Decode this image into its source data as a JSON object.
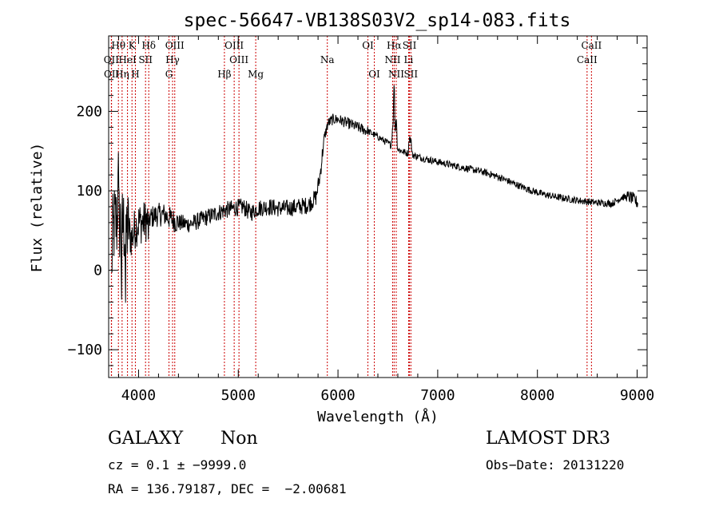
{
  "chart_data": {
    "type": "line",
    "title": "spec-56647-VB138S03V2_sp14-083.fits",
    "xlabel": "Wavelength (Å)",
    "ylabel": "Flux (relative)",
    "xlim": [
      3700,
      9100
    ],
    "ylim": [
      -135,
      295
    ],
    "xticks": [
      4000,
      5000,
      6000,
      7000,
      8000,
      9000
    ],
    "xtick_labels": [
      "4000",
      "5000",
      "6000",
      "7000",
      "8000",
      "9000"
    ],
    "yticks": [
      -100,
      0,
      100,
      200
    ],
    "ytick_labels": [
      "−100",
      "0",
      "100",
      "200"
    ],
    "line_color": "#000000",
    "marker_color": "#cc0000",
    "spectrum_anchors": [
      [
        3730,
        30
      ],
      [
        3760,
        60
      ],
      [
        3800,
        60
      ],
      [
        3860,
        55
      ],
      [
        3900,
        50
      ],
      [
        3930,
        40
      ],
      [
        3970,
        55
      ],
      [
        4000,
        60
      ],
      [
        4050,
        60
      ],
      [
        4100,
        65
      ],
      [
        4150,
        68
      ],
      [
        4200,
        70
      ],
      [
        4260,
        70
      ],
      [
        4320,
        65
      ],
      [
        4400,
        60
      ],
      [
        4500,
        58
      ],
      [
        4560,
        60
      ],
      [
        4650,
        65
      ],
      [
        4750,
        70
      ],
      [
        4850,
        75
      ],
      [
        4950,
        78
      ],
      [
        5050,
        80
      ],
      [
        5120,
        72
      ],
      [
        5200,
        78
      ],
      [
        5300,
        80
      ],
      [
        5400,
        78
      ],
      [
        5500,
        78
      ],
      [
        5600,
        80
      ],
      [
        5700,
        82
      ],
      [
        5780,
        92
      ],
      [
        5820,
        120
      ],
      [
        5860,
        165
      ],
      [
        5900,
        185
      ],
      [
        5950,
        190
      ],
      [
        6000,
        190
      ],
      [
        6100,
        185
      ],
      [
        6200,
        180
      ],
      [
        6300,
        175
      ],
      [
        6400,
        168
      ],
      [
        6500,
        160
      ],
      [
        6600,
        152
      ],
      [
        6700,
        147
      ],
      [
        6800,
        143
      ],
      [
        6880,
        140
      ],
      [
        6950,
        138
      ],
      [
        7050,
        135
      ],
      [
        7150,
        132
      ],
      [
        7300,
        128
      ],
      [
        7450,
        124
      ],
      [
        7600,
        118
      ],
      [
        7750,
        110
      ],
      [
        7900,
        102
      ],
      [
        8050,
        96
      ],
      [
        8200,
        92
      ],
      [
        8400,
        88
      ],
      [
        8600,
        85
      ],
      [
        8750,
        84
      ],
      [
        8850,
        92
      ],
      [
        8930,
        92
      ],
      [
        8980,
        88
      ],
      [
        9000,
        85
      ]
    ],
    "spectrum_features": [
      {
        "x": 6563,
        "height": 80,
        "width": 8
      },
      {
        "x": 6584,
        "height": 40,
        "width": 8
      },
      {
        "x": 6548,
        "height": 22,
        "width": 8
      },
      {
        "x": 6717,
        "height": 22,
        "width": 8
      },
      {
        "x": 6731,
        "height": 18,
        "width": 8
      },
      {
        "x": 3727,
        "height": -60,
        "width": 6
      },
      {
        "x": 3830,
        "height": -80,
        "width": 4
      },
      {
        "x": 3870,
        "height": -95,
        "width": 4
      },
      {
        "x": 3795,
        "height": 100,
        "width": 4
      },
      {
        "x": 4100,
        "height": -15,
        "width": 8
      }
    ],
    "lines": [
      {
        "name": "OII",
        "x": 3727,
        "row": 1
      },
      {
        "name": "OII",
        "x": 3729,
        "row": 2
      },
      {
        "name": "Hθ",
        "x": 3798,
        "row": 0
      },
      {
        "name": "Hη",
        "x": 3835,
        "row": 2
      },
      {
        "name": "HeI",
        "x": 3889,
        "row": 1
      },
      {
        "name": "K",
        "x": 3934,
        "row": 0
      },
      {
        "name": "H",
        "x": 3968,
        "row": 2
      },
      {
        "name": "SII",
        "x": 4070,
        "row": 1
      },
      {
        "name": "Hδ",
        "x": 4102,
        "row": 0
      },
      {
        "name": "OIII",
        "x": 4363,
        "row": 0
      },
      {
        "name": "Hγ",
        "x": 4341,
        "row": 1
      },
      {
        "name": "G",
        "x": 4305,
        "row": 2
      },
      {
        "name": "Hβ",
        "x": 4861,
        "row": 2
      },
      {
        "name": "OIII",
        "x": 4959,
        "row": 0
      },
      {
        "name": "OIII",
        "x": 5007,
        "row": 1
      },
      {
        "name": "Mg",
        "x": 5175,
        "row": 2
      },
      {
        "name": "Na",
        "x": 5893,
        "row": 1
      },
      {
        "name": "OI",
        "x": 6300,
        "row": 0
      },
      {
        "name": "OI",
        "x": 6364,
        "row": 2
      },
      {
        "name": "Hα",
        "x": 6563,
        "row": 0
      },
      {
        "name": "NII",
        "x": 6548,
        "row": 1
      },
      {
        "name": "NII",
        "x": 6584,
        "row": 2
      },
      {
        "name": "SII",
        "x": 6717,
        "row": 0
      },
      {
        "name": "Li",
        "x": 6708,
        "row": 1
      },
      {
        "name": "SII",
        "x": 6731,
        "row": 2
      },
      {
        "name": "CaII",
        "x": 8542,
        "row": 0
      },
      {
        "name": "CaII",
        "x": 8498,
        "row": 1
      }
    ]
  },
  "info": {
    "classification": "GALAXY",
    "subclass": "Non",
    "survey": "LAMOST DR3",
    "redshift_line": "cz = 0.1 ± −9999.0",
    "obs_date": "Obs−Date: 20131220",
    "coords": "RA = 136.79187, DEC =  −2.00681"
  }
}
